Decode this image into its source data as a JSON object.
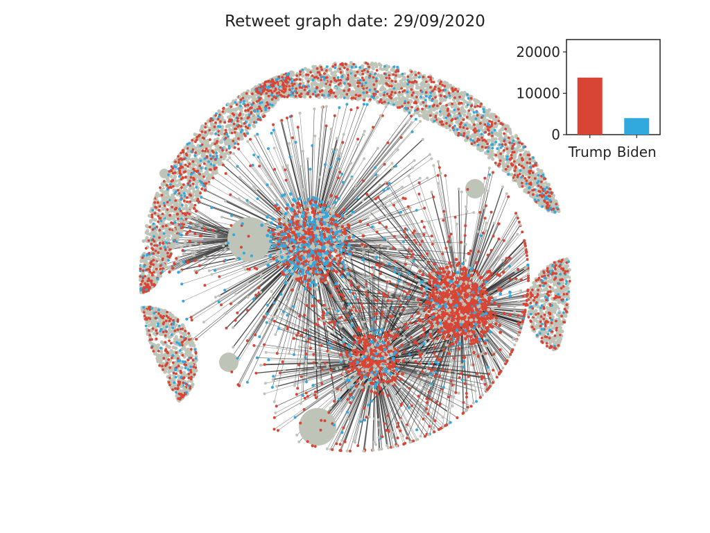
{
  "title": "Retweet graph date: 29/09/2020",
  "colors": {
    "trump": "#d94535",
    "biden": "#31a9df",
    "neutral": "#bfc4b8",
    "edge": "#1a1a1a"
  },
  "network": {
    "description_type": "retweet graph",
    "node_colors": [
      "trump",
      "biden",
      "neutral"
    ]
  },
  "chart_data": {
    "type": "bar",
    "title": "",
    "xlabel": "",
    "ylabel": "",
    "categories": [
      "Trump",
      "Biden"
    ],
    "values": [
      13800,
      4000
    ],
    "colors": [
      "#d94535",
      "#31a9df"
    ],
    "ylim": [
      0,
      23000
    ],
    "yticks": [
      0,
      10000,
      20000
    ],
    "ytick_labels": [
      "0",
      "10000",
      "20000"
    ],
    "grid": false
  }
}
